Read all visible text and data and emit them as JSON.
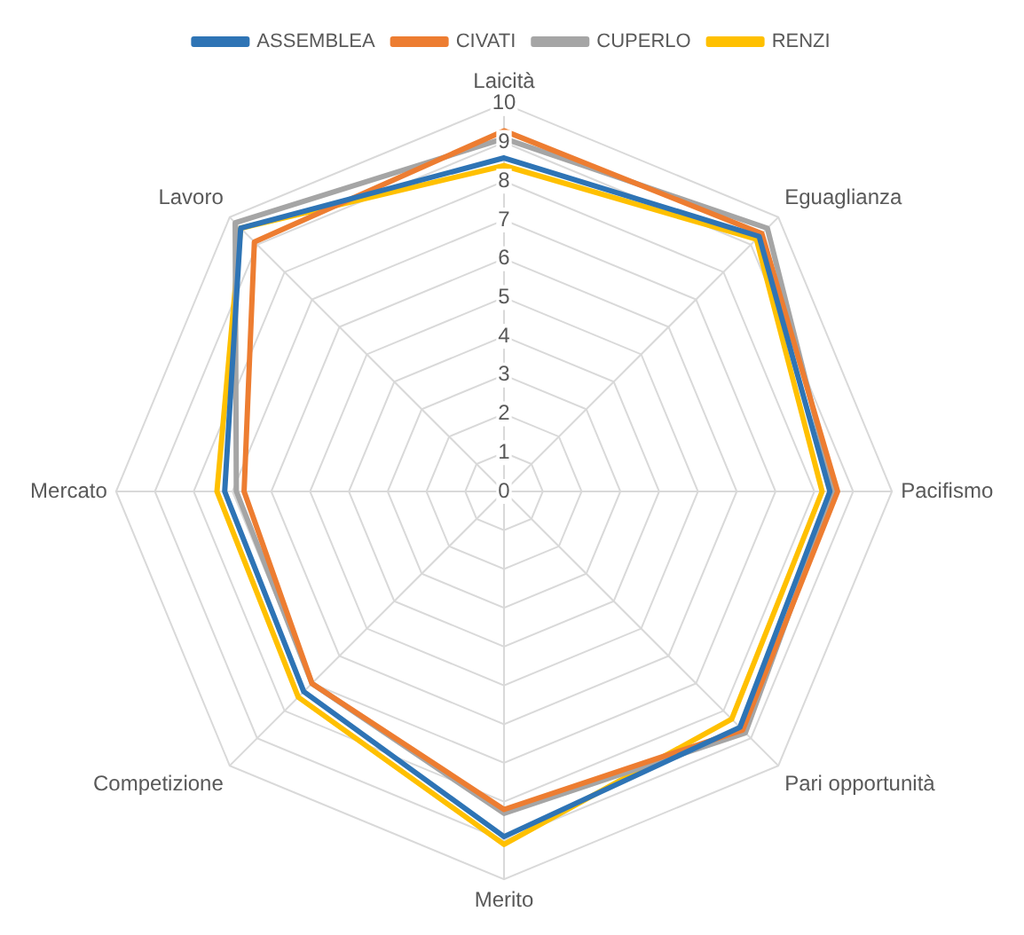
{
  "chart_data": {
    "type": "radar",
    "categories": [
      "Laicità",
      "Eguaglianza",
      "Pacifismo",
      "Pari opportunità",
      "Merito",
      "Competizione",
      "Mercato",
      "Lavoro"
    ],
    "series": [
      {
        "name": "ASSEMBLEA",
        "color": "#2e74b5",
        "values": [
          8.6,
          9.3,
          8.4,
          8.6,
          8.9,
          7.3,
          7.2,
          9.6
        ]
      },
      {
        "name": "CIVATI",
        "color": "#ed7d31",
        "values": [
          9.3,
          9.4,
          8.6,
          8.7,
          8.2,
          7.0,
          6.7,
          9.1
        ]
      },
      {
        "name": "CUPERLO",
        "color": "#a5a5a5",
        "values": [
          9.1,
          9.6,
          8.5,
          8.8,
          8.3,
          7.0,
          6.9,
          9.8
        ]
      },
      {
        "name": "RENZI",
        "color": "#ffc000",
        "values": [
          8.4,
          9.2,
          8.2,
          8.3,
          9.1,
          7.5,
          7.4,
          9.6
        ]
      }
    ],
    "ylim": [
      0,
      10
    ],
    "yticks": [
      0,
      1,
      2,
      3,
      4,
      5,
      6,
      7,
      8,
      9,
      10
    ],
    "grid": true,
    "legend": "top",
    "marker": "none"
  }
}
